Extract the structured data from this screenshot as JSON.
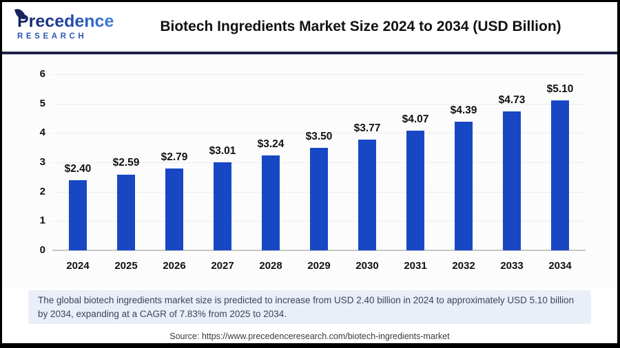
{
  "logo": {
    "name": "Precedence",
    "sub": "RESEARCH"
  },
  "header": {
    "title": "Biotech Ingredients Market Size 2024 to 2034 (USD Billion)"
  },
  "chart_data": {
    "type": "bar",
    "title": "Biotech Ingredients Market Size 2024 to 2034 (USD Billion)",
    "categories": [
      "2024",
      "2025",
      "2026",
      "2027",
      "2028",
      "2029",
      "2030",
      "2031",
      "2032",
      "2033",
      "2034"
    ],
    "values": [
      2.4,
      2.59,
      2.79,
      3.01,
      3.24,
      3.5,
      3.77,
      4.07,
      4.39,
      4.73,
      5.1
    ],
    "value_labels": [
      "$2.40",
      "$2.59",
      "$2.79",
      "$3.01",
      "$3.24",
      "$3.50",
      "$3.77",
      "$4.07",
      "$4.39",
      "$4.73",
      "$5.10"
    ],
    "xlabel": "",
    "ylabel": "",
    "ylim": [
      0,
      6
    ],
    "yticks": [
      0,
      1,
      2,
      3,
      4,
      5,
      6
    ],
    "grid": true,
    "legend": "none",
    "bar_color": "#1847c4"
  },
  "note": {
    "text": "The global biotech ingredients market size is predicted to increase from USD 2.40 billion in 2024 to approximately USD 5.10 billion by 2034, expanding at a CAGR of 7.83% from 2025 to 2034."
  },
  "source": {
    "text": "Source: https://www.precedenceresearch.com/biotech-ingredients-market"
  },
  "colors": {
    "bar": "#1847c4",
    "divider": "#1d2149",
    "note_bg": "#e9eef8",
    "chart_bg": "#fcfcfc"
  }
}
